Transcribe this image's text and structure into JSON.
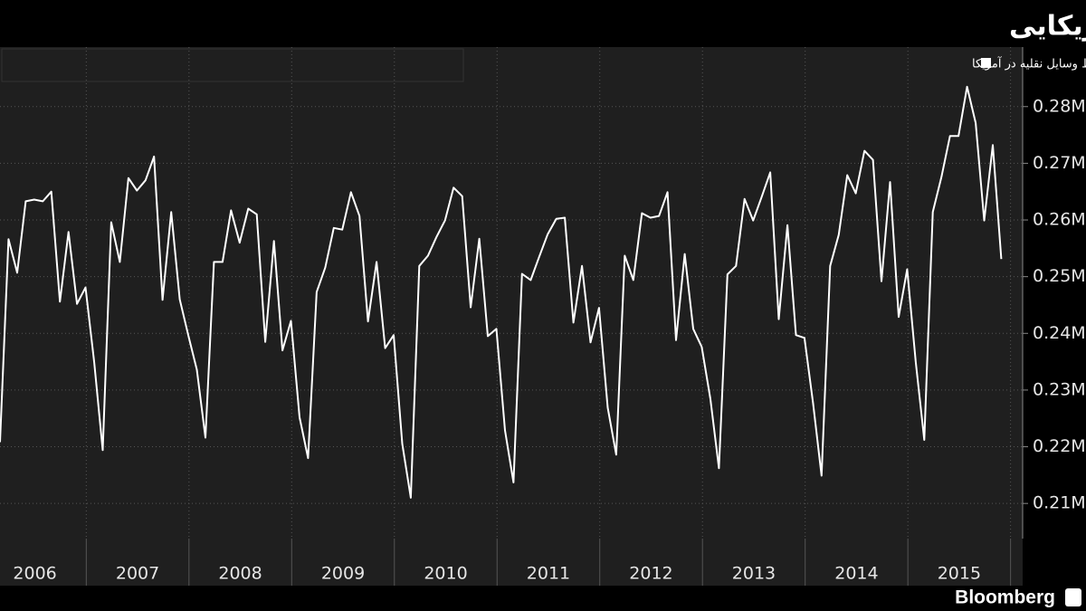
{
  "chart_data": {
    "type": "line",
    "title": "رشد میزان رانندگی شهروندان آمریکایی",
    "source": "Bloomberg",
    "series": [
      {
        "name": "میزان مایل مسافت طی شده توسط وسایل نقلیه در آمریکا",
        "color": "#ffffff",
        "values": [
          0.2208,
          0.2566,
          0.2507,
          0.2633,
          0.2636,
          0.2633,
          0.265,
          0.2456,
          0.2579,
          0.2452,
          0.2481,
          0.2349,
          0.2194,
          0.2596,
          0.2526,
          0.2674,
          0.2652,
          0.267,
          0.2712,
          0.2459,
          0.2614,
          0.246,
          0.2397,
          0.2336,
          0.2216,
          0.2526,
          0.2526,
          0.2617,
          0.256,
          0.262,
          0.261,
          0.2385,
          0.2563,
          0.237,
          0.2422,
          0.2252,
          0.218,
          0.2473,
          0.2516,
          0.2586,
          0.2583,
          0.2649,
          0.2607,
          0.2421,
          0.2526,
          0.2374,
          0.2397,
          0.2205,
          0.211,
          0.2519,
          0.2537,
          0.257,
          0.2599,
          0.2657,
          0.2642,
          0.2446,
          0.2567,
          0.2395,
          0.2408,
          0.2229,
          0.2137,
          0.2505,
          0.2494,
          0.2535,
          0.2575,
          0.2602,
          0.2604,
          0.2419,
          0.2519,
          0.2384,
          0.2445,
          0.2269,
          0.2186,
          0.2537,
          0.2494,
          0.2612,
          0.2604,
          0.2607,
          0.2649,
          0.2388,
          0.254,
          0.2408,
          0.2376,
          0.2285,
          0.2162,
          0.2504,
          0.2519,
          0.2637,
          0.2599,
          0.2641,
          0.2684,
          0.2425,
          0.2591,
          0.2397,
          0.2392,
          0.2277,
          0.2149,
          0.2519,
          0.2574,
          0.2679,
          0.2647,
          0.2722,
          0.2706,
          0.2492,
          0.2667,
          0.2429,
          0.2513,
          0.2349,
          0.2212,
          0.2614,
          0.2676,
          0.2748,
          0.2748,
          0.2835,
          0.2771,
          0.2599,
          0.2732,
          0.2531
        ]
      }
    ],
    "x": [
      2006.16,
      2006.243,
      2006.327,
      2006.41,
      2006.493,
      2006.577,
      2006.66,
      2006.743,
      2006.827,
      2006.91,
      2006.993,
      2007.077,
      2007.16,
      2007.243,
      2007.327,
      2007.41,
      2007.493,
      2007.577,
      2007.66,
      2007.743,
      2007.827,
      2007.91,
      2007.993,
      2008.077,
      2008.16,
      2008.243,
      2008.327,
      2008.41,
      2008.493,
      2008.577,
      2008.66,
      2008.743,
      2008.827,
      2008.91,
      2008.993,
      2009.077,
      2009.16,
      2009.243,
      2009.327,
      2009.41,
      2009.493,
      2009.577,
      2009.66,
      2009.743,
      2009.827,
      2009.91,
      2009.993,
      2010.077,
      2010.16,
      2010.243,
      2010.327,
      2010.41,
      2010.493,
      2010.577,
      2010.66,
      2010.743,
      2010.827,
      2010.91,
      2010.993,
      2011.077,
      2011.16,
      2011.243,
      2011.327,
      2011.41,
      2011.493,
      2011.577,
      2011.66,
      2011.743,
      2011.827,
      2011.91,
      2011.993,
      2012.077,
      2012.16,
      2012.243,
      2012.327,
      2012.41,
      2012.493,
      2012.577,
      2012.66,
      2012.743,
      2012.827,
      2012.91,
      2012.993,
      2013.077,
      2013.16,
      2013.243,
      2013.327,
      2013.41,
      2013.493,
      2013.577,
      2013.66,
      2013.743,
      2013.827,
      2013.91,
      2013.993,
      2014.077,
      2014.16,
      2014.243,
      2014.327,
      2014.41,
      2014.493,
      2014.577,
      2014.66,
      2014.743,
      2014.827,
      2014.91,
      2014.993,
      2015.077,
      2015.16,
      2015.243,
      2015.327,
      2015.41,
      2015.493,
      2015.577,
      2015.66,
      2015.743,
      2015.827,
      2015.91
    ],
    "years": [
      2006,
      2007,
      2008,
      2009,
      2010,
      2011,
      2012,
      2013,
      2014,
      2015
    ],
    "xlim": [
      2006.16,
      2016.1
    ],
    "ylim": [
      0.2038,
      0.2905
    ],
    "yticks": [
      {
        "value": 0.21,
        "label": "0.21M"
      },
      {
        "value": 0.22,
        "label": "0.22M"
      },
      {
        "value": 0.23,
        "label": "0.23M"
      },
      {
        "value": 0.24,
        "label": "0.24M"
      },
      {
        "value": 0.25,
        "label": "0.25M"
      },
      {
        "value": 0.26,
        "label": "0.26M"
      },
      {
        "value": 0.27,
        "label": "0.27M"
      },
      {
        "value": 0.28,
        "label": "0.28M"
      }
    ],
    "grid": true
  }
}
